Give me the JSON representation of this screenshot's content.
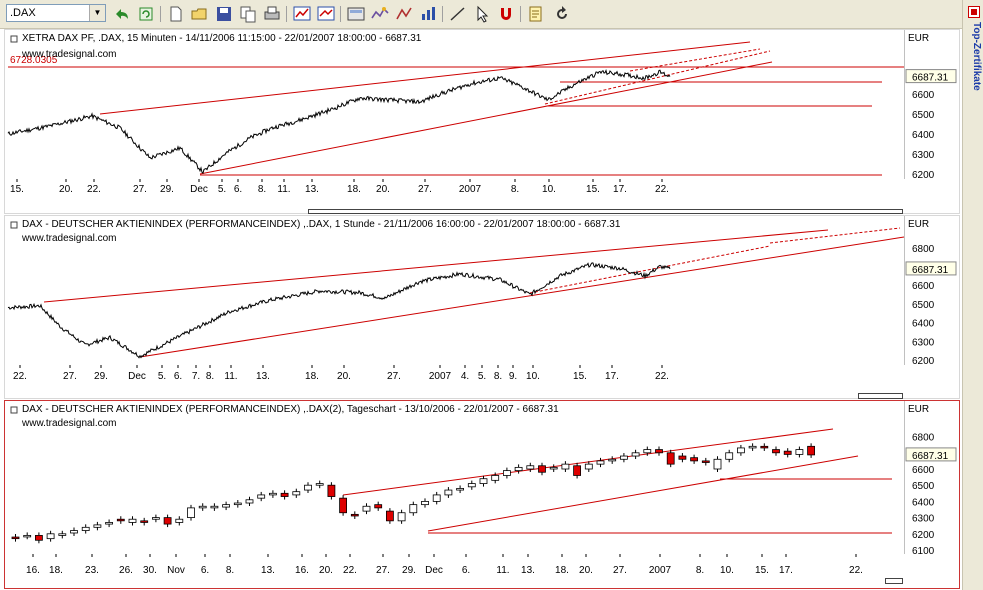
{
  "toolbar": {
    "symbol_value": ".DAX",
    "icons": [
      "undo-icon",
      "refresh-icon",
      "new-icon",
      "open-icon",
      "save-icon",
      "copy-icon",
      "print-icon",
      "chart-edit-icon",
      "chart-props-icon",
      "layout-icon",
      "indicator-icon",
      "drawing-icon",
      "chart-type-icon",
      "line-tool-icon",
      "cursor-icon",
      "magnet-icon",
      "notes-icon",
      "reload-icon"
    ]
  },
  "sidebar": {
    "tab_label": "Top-Zertifikate"
  },
  "panels": [
    {
      "title": "XETRA DAX PF, .DAX, 15 Minuten - 14/11/2006 11:15:00 - 22/01/2007 18:00:00 - 6687.31",
      "source": "www.tradesignal.com",
      "currency": "EUR",
      "last_price": "6687.31",
      "level_label": "6728.0305",
      "y_ticks": [
        "6600",
        "6500",
        "6400",
        "6300",
        "6200"
      ],
      "x_ticks": [
        "15.",
        "20.",
        "22.",
        "27.",
        "29.",
        "Dec",
        "5.",
        "6.",
        "8.",
        "11.",
        "13.",
        "18.",
        "20.",
        "27.",
        "2007",
        "8.",
        "10.",
        "15.",
        "17.",
        "22."
      ]
    },
    {
      "title": "DAX - DEUTSCHER AKTIENINDEX (PERFORMANCEINDEX) ,.DAX, 1 Stunde - 21/11/2006 16:00:00 - 22/01/2007 18:00:00 - 6687.31",
      "source": "www.tradesignal.com",
      "currency": "EUR",
      "last_price": "6687.31",
      "y_ticks": [
        "6800",
        "6600",
        "6500",
        "6400",
        "6300",
        "6200"
      ],
      "x_ticks": [
        "22.",
        "27.",
        "29.",
        "Dec",
        "5.",
        "6.",
        "7.",
        "8.",
        "11.",
        "13.",
        "18.",
        "20.",
        "27.",
        "2007",
        "4.",
        "5.",
        "8.",
        "9.",
        "10.",
        "15.",
        "17.",
        "22."
      ]
    },
    {
      "title": "DAX - DEUTSCHER AKTIENINDEX (PERFORMANCEINDEX) ,.DAX(2), Tageschart - 13/10/2006 - 22/01/2007 - 6687.31",
      "source": "www.tradesignal.com",
      "currency": "EUR",
      "last_price": "6687.31",
      "y_ticks": [
        "6800",
        "6600",
        "6500",
        "6400",
        "6300",
        "6200",
        "6100"
      ],
      "x_ticks": [
        "16.",
        "18.",
        "23.",
        "26.",
        "30.",
        "Nov",
        "6.",
        "8.",
        "13.",
        "16.",
        "20.",
        "22.",
        "27.",
        "29.",
        "Dec",
        "6.",
        "11.",
        "13.",
        "18.",
        "20.",
        "27.",
        "2007",
        "8.",
        "10.",
        "15.",
        "17.",
        "22."
      ]
    }
  ],
  "colors": {
    "trend": "#cc0000",
    "price": "#000000",
    "down_candle": "#dd0000",
    "up_candle": "#ffffff"
  }
}
